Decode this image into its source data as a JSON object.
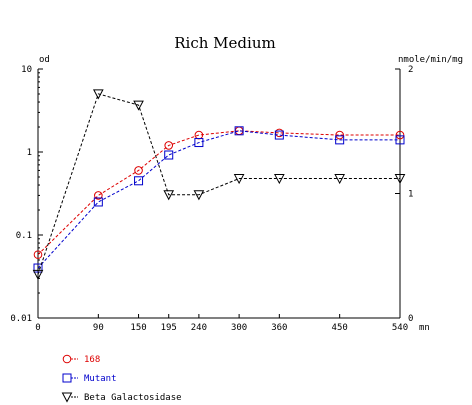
{
  "chart_data": {
    "type": "line",
    "title": "Rich Medium",
    "xlabel": "mn",
    "ylabel": "od",
    "y2label": "nmole/min/mg",
    "x": [
      0,
      90,
      150,
      195,
      240,
      300,
      360,
      450,
      540
    ],
    "xlim": [
      0,
      540
    ],
    "ylim": [
      0.01,
      10
    ],
    "yscale": "log",
    "y2lim": [
      0,
      2
    ],
    "yticks": [
      "10",
      "1",
      "0.1",
      "0.01"
    ],
    "y2ticks": [
      "2",
      "1",
      "0"
    ],
    "grid": false,
    "legend_position": "bottom-left",
    "series": [
      {
        "name": "168",
        "axis": "left",
        "color": "#dd0000",
        "marker": "circle",
        "line": "dashed",
        "values": [
          0.058,
          0.3,
          0.6,
          1.2,
          1.6,
          1.8,
          1.7,
          1.6,
          1.6
        ]
      },
      {
        "name": "Mutant",
        "axis": "left",
        "color": "#0000cc",
        "marker": "square",
        "line": "dashed",
        "values": [
          0.04,
          0.25,
          0.45,
          0.92,
          1.3,
          1.8,
          1.6,
          1.4,
          1.4
        ]
      },
      {
        "name": "Beta Galactosidase",
        "axis": "right",
        "color": "#000000",
        "marker": "triangle-down",
        "line": "dashed",
        "values": [
          0.35,
          1.8,
          1.71,
          0.99,
          0.99,
          1.12,
          1.12,
          1.12,
          1.12
        ]
      }
    ]
  }
}
